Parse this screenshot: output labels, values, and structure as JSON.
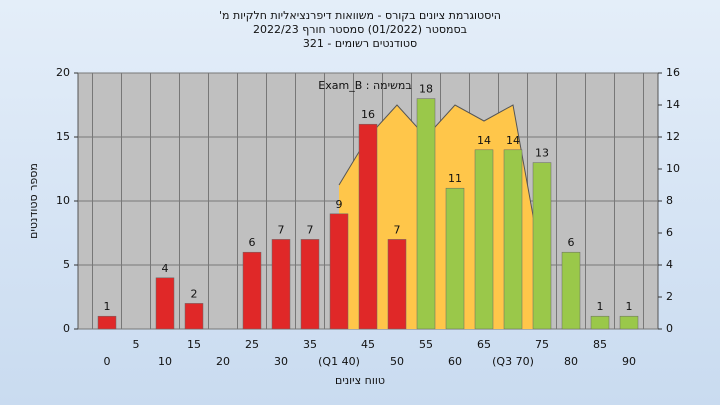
{
  "chart_data": {
    "type": "bar",
    "title": "'היסטוגרמת ציונים בקורס - משוואות דיפרנציאליות חלקיות מ",
    "subtitle": "בסמסטר  (01/2022)  סמסטר חורף  2022/23",
    "subtitle2": "321 - סטודנטים רשומים",
    "annotation": "Exam_B : במשימה",
    "y_label": "מספר סטודנטים",
    "x_label": "טווח ציונים",
    "categories": [
      "0",
      "5",
      "10",
      "15",
      "20",
      "25",
      "30",
      "35",
      "(Q1 40)",
      "45",
      "50",
      "55",
      "60",
      "65",
      "(Q3 70)",
      "75",
      "80",
      "85",
      "90"
    ],
    "values": [
      1,
      0,
      4,
      2,
      0,
      6,
      7,
      7,
      9,
      16,
      7,
      18,
      11,
      14,
      14,
      13,
      6,
      1,
      1
    ],
    "value_labels": [
      "1",
      null,
      "4",
      "2",
      null,
      "6",
      "7",
      "7",
      "9",
      "16",
      "7",
      "18",
      "11",
      "14",
      "14",
      "13",
      "6",
      "1",
      "1"
    ],
    "colors": [
      "#e02828",
      "#e02828",
      "#e02828",
      "#e02828",
      "#e02828",
      "#e02828",
      "#e02828",
      "#e02828",
      "#e02828",
      "#e02828",
      "#e02828",
      "#9ac84a",
      "#9ac84a",
      "#9ac84a",
      "#9ac84a",
      "#9ac84a",
      "#9ac84a",
      "#9ac84a",
      "#9ac84a"
    ],
    "area": {
      "color": "#ffc64a",
      "values": [
        null,
        null,
        null,
        null,
        null,
        null,
        null,
        null,
        9,
        12,
        14,
        12,
        14,
        13,
        14,
        4,
        null,
        null,
        null
      ]
    },
    "ylim": [
      0,
      20
    ],
    "yticks": [
      0,
      5,
      10,
      15,
      20
    ],
    "y2lim": [
      0,
      16
    ],
    "y2ticks": [
      0,
      2,
      4,
      6,
      8,
      10,
      12,
      14,
      16
    ],
    "grid": true
  }
}
